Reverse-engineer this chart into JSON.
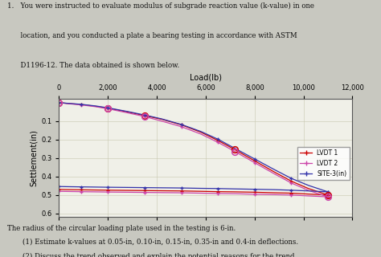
{
  "xlabel": "Load(lb)",
  "ylabel": "Settlement(in)",
  "xlim": [
    0,
    12000
  ],
  "ylim": [
    0.62,
    -0.02
  ],
  "xticks": [
    0,
    2000,
    4000,
    6000,
    8000,
    10000,
    12000
  ],
  "yticks": [
    0.1,
    0.2,
    0.3,
    0.4,
    0.5,
    0.6
  ],
  "lvdt1_color": "#cc0000",
  "lvdt2_color": "#cc44aa",
  "site3_color": "#3333aa",
  "bg_color": "#f0f0e8",
  "page_bg": "#c8c8c0",
  "loading_load": [
    0,
    400,
    900,
    1500,
    2000,
    2800,
    3500,
    4200,
    5000,
    5800,
    6500,
    7200,
    8000,
    8800,
    9500,
    10200,
    11000
  ],
  "lvdt1_loading": [
    0.0,
    0.005,
    0.01,
    0.02,
    0.03,
    0.05,
    0.07,
    0.09,
    0.12,
    0.16,
    0.205,
    0.255,
    0.315,
    0.375,
    0.425,
    0.465,
    0.5
  ],
  "lvdt2_loading": [
    0.0,
    0.006,
    0.012,
    0.022,
    0.033,
    0.055,
    0.075,
    0.1,
    0.13,
    0.17,
    0.215,
    0.265,
    0.325,
    0.385,
    0.435,
    0.475,
    0.51
  ],
  "site3_loading": [
    0.0,
    0.004,
    0.009,
    0.018,
    0.028,
    0.048,
    0.067,
    0.088,
    0.118,
    0.156,
    0.198,
    0.248,
    0.305,
    0.362,
    0.41,
    0.448,
    0.483
  ],
  "unloading_load": [
    11000,
    10200,
    9500,
    8800,
    8000,
    7200,
    6500,
    5800,
    5000,
    4200,
    3500,
    2800,
    2000,
    1500,
    900,
    400,
    0
  ],
  "lvdt1_unloading": [
    0.5,
    0.495,
    0.49,
    0.488,
    0.485,
    0.483,
    0.482,
    0.48,
    0.478,
    0.477,
    0.476,
    0.475,
    0.474,
    0.473,
    0.472,
    0.471,
    0.47
  ],
  "lvdt2_unloading": [
    0.51,
    0.505,
    0.5,
    0.498,
    0.496,
    0.493,
    0.492,
    0.49,
    0.488,
    0.487,
    0.486,
    0.485,
    0.484,
    0.483,
    0.482,
    0.481,
    0.48
  ],
  "site3_unloading": [
    0.483,
    0.478,
    0.474,
    0.471,
    0.469,
    0.467,
    0.465,
    0.464,
    0.462,
    0.461,
    0.46,
    0.459,
    0.458,
    0.457,
    0.456,
    0.455,
    0.454
  ],
  "circle_loads_lvdt1": [
    0,
    2000,
    3500,
    7200,
    11000
  ],
  "circle_settle_lvdt1": [
    0.0,
    0.03,
    0.07,
    0.255,
    0.5
  ],
  "circle_loads_lvdt2": [
    0,
    2000,
    3500,
    7200,
    11000
  ],
  "circle_settle_lvdt2": [
    0.0,
    0.033,
    0.075,
    0.265,
    0.51
  ]
}
